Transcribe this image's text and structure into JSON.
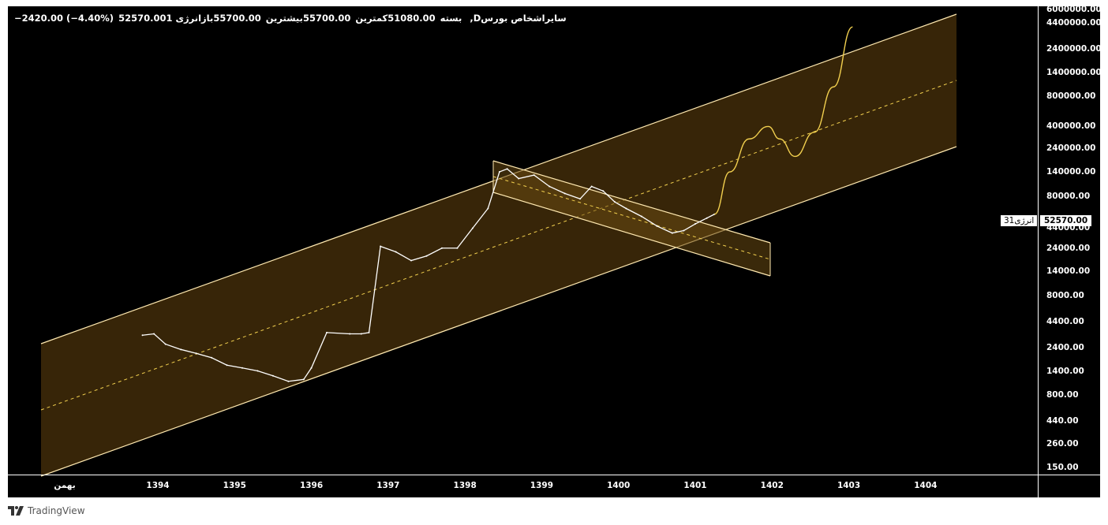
{
  "header": {
    "title": "انرژی 1 ,Dسایراشخاص بورس",
    "segments": [
      {
        "label": "1 انرژی بورس سایراشخاص,D",
        "text": "انرژی 1 ,Dسایراشخاص بورس"
      },
      {
        "label": "باز",
        "text": "55700.00باز"
      },
      {
        "label": "بیشترین",
        "text": "55700.00بیشترین"
      },
      {
        "label": "کمترین",
        "text": "51080.00کمترین"
      },
      {
        "label": "بسته",
        "text": "52570.00بسته"
      },
      {
        "label": "change",
        "text": "−2420.00 (−4.40%)"
      }
    ]
  },
  "price_tag": {
    "value": "52570.00",
    "symbol": "انرژی31"
  },
  "footer": {
    "brand": "TradingView"
  },
  "colors": {
    "background": "#000000",
    "channel_fill": "#3a2708",
    "channel_line": "#ffe9b0",
    "projection": "#f2d04f",
    "price_line": "#ffffff"
  },
  "chart_data": {
    "type": "line",
    "scale": "log",
    "y_ticks": [
      "6000000.00",
      "4400000.00",
      "2400000.00",
      "1400000.00",
      "800000.00",
      "400000.00",
      "240000.00",
      "140000.00",
      "80000.00",
      "44000.00",
      "24000.00",
      "14000.00",
      "8000.00",
      "4400.00",
      "2400.00",
      "1400.00",
      "800.00",
      "440.00",
      "260.00",
      "150.00"
    ],
    "x_ticks": [
      "بهمن",
      "1394",
      "1395",
      "1396",
      "1397",
      "1398",
      "1399",
      "1400",
      "1401",
      "1402",
      "1403",
      "1404"
    ],
    "series": [
      {
        "x": [
          1393.8,
          1393.95,
          1394.1,
          1394.3,
          1394.5,
          1394.7,
          1394.9,
          1395.1,
          1395.3,
          1395.5,
          1395.7,
          1395.9,
          1396.0,
          1396.2,
          1396.5,
          1396.65,
          1396.75,
          1396.9,
          1397.1,
          1397.3,
          1397.5,
          1397.7,
          1397.9,
          1398.1,
          1398.3,
          1398.45,
          1398.55,
          1398.7,
          1398.9,
          1399.1,
          1399.3,
          1399.5,
          1399.65,
          1399.8,
          1399.95,
          1400.1,
          1400.3,
          1400.5,
          1400.7,
          1400.85,
          1401.0,
          1401.15,
          1401.25
        ],
        "y": [
          3200,
          3300,
          2600,
          2300,
          2100,
          1900,
          1600,
          1500,
          1400,
          1250,
          1100,
          1150,
          1500,
          3400,
          3300,
          3300,
          3400,
          25000,
          22000,
          18000,
          20000,
          24000,
          24000,
          38000,
          60000,
          140000,
          150000,
          120000,
          130000,
          100000,
          85000,
          75000,
          100000,
          90000,
          70000,
          60000,
          50000,
          40000,
          34000,
          36000,
          42000,
          48000,
          52570
        ]
      }
    ],
    "projection": {
      "x": [
        1401.25,
        1401.45,
        1401.7,
        1401.95,
        1402.1,
        1402.3,
        1402.55,
        1402.8,
        1403.05
      ],
      "y": [
        52570,
        140000,
        300000,
        400000,
        300000,
        200000,
        350000,
        1000000,
        4000000
      ]
    },
    "annotations": [
      "ascending channel",
      "descending channel"
    ]
  }
}
